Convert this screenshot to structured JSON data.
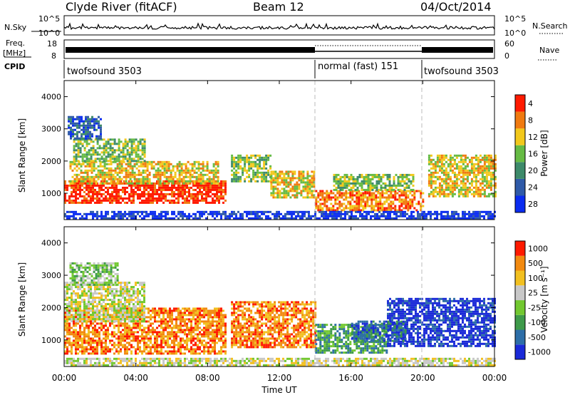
{
  "header": {
    "station": "Clyde River (fitACF)",
    "beam": "Beam 12",
    "date": "04/Oct/2014"
  },
  "strip_labels": {
    "nsky": "N.Sky",
    "nsearch": "N.Search",
    "freq_line1": "Freq.",
    "freq_line2": "[MHz]",
    "nave": "Nave",
    "cpid": "CPID",
    "nsky_tick_hi": "10^5",
    "nsky_tick_lo": "10^0",
    "freq_tick_hi": "18",
    "freq_tick_lo": "8",
    "nave_tick_hi": "60",
    "nave_tick_lo": "0"
  },
  "cpid_segments": [
    {
      "label": "twofsound 3503",
      "start_hour": 0,
      "end_hour": 14
    },
    {
      "label": "normal (fast) 151",
      "start_hour": 14,
      "end_hour": 20
    },
    {
      "label": "twofsound 3503",
      "start_hour": 20,
      "end_hour": 24
    }
  ],
  "axes": {
    "ylabel": "Slant Range [km]",
    "xlabel": "Time UT",
    "y_ticks": [
      "1000",
      "2000",
      "3000",
      "4000"
    ],
    "x_ticks": [
      "00:00",
      "04:00",
      "08:00",
      "12:00",
      "16:00",
      "20:00",
      "00:00"
    ]
  },
  "chart_data": [
    {
      "type": "heatmap",
      "variable": "Power",
      "unit": "dB",
      "colorbar_label": "Power [dB]",
      "colorbar_ticks": [
        "4",
        "8",
        "12",
        "16",
        "20",
        "24",
        "28"
      ],
      "colorbar_colors": [
        "#0a2cf0",
        "#2f5aa8",
        "#3d8a6a",
        "#66bb44",
        "#f2c81b",
        "#f07a10",
        "#ff1a00"
      ],
      "ylim": [
        180,
        4500
      ],
      "xlim_hours": [
        0,
        24
      ],
      "x_tick_hours": [
        0,
        4,
        8,
        12,
        16,
        20,
        24
      ],
      "y_tick_values": [
        1000,
        2000,
        3000,
        4000
      ],
      "regions": [
        {
          "t0": 0.0,
          "t1": 9.0,
          "r0": 700,
          "r1": 1400,
          "level": 6
        },
        {
          "t0": 0.3,
          "t1": 8.6,
          "r0": 1300,
          "r1": 2000,
          "level": 4
        },
        {
          "t0": 0.5,
          "t1": 4.5,
          "r0": 2000,
          "r1": 2700,
          "level": 3
        },
        {
          "t0": 0.2,
          "t1": 2.0,
          "r0": 2700,
          "r1": 3400,
          "level": 1
        },
        {
          "t0": 9.3,
          "t1": 11.5,
          "r0": 1400,
          "r1": 2200,
          "level": 3
        },
        {
          "t0": 11.5,
          "t1": 14.0,
          "r0": 900,
          "r1": 1700,
          "level": 4
        },
        {
          "t0": 14.0,
          "t1": 20.0,
          "r0": 500,
          "r1": 1100,
          "level": 5
        },
        {
          "t0": 15.0,
          "t1": 19.5,
          "r0": 1100,
          "r1": 1600,
          "level": 3
        },
        {
          "t0": 20.3,
          "t1": 24.0,
          "r0": 900,
          "r1": 2200,
          "level": 4
        },
        {
          "t0": 0.0,
          "t1": 24.0,
          "r0": 200,
          "r1": 450,
          "level": 0
        }
      ]
    },
    {
      "type": "heatmap",
      "variable": "Velocity",
      "unit": "m s^-1",
      "colorbar_label": "Velocity [m s⁻¹]",
      "colorbar_ticks": [
        "1000",
        "500",
        "100",
        "25",
        "-25",
        "-100",
        "-500",
        "-1000"
      ],
      "colorbar_colors": [
        "#1a2ad8",
        "#2d6ea8",
        "#3e9a4a",
        "#72c830",
        "#c8c8c8",
        "#f2c020",
        "#f28a10",
        "#ff1a00"
      ],
      "ylim": [
        180,
        4500
      ],
      "xlim_hours": [
        0,
        24
      ],
      "x_tick_hours": [
        0,
        4,
        8,
        12,
        16,
        20,
        24
      ],
      "y_tick_values": [
        1000,
        2000,
        3000,
        4000
      ],
      "regions": [
        {
          "t0": 0.0,
          "t1": 9.0,
          "r0": 600,
          "r1": 2000,
          "level": 6
        },
        {
          "t0": 0.0,
          "t1": 4.5,
          "r0": 1600,
          "r1": 2800,
          "level": 4
        },
        {
          "t0": 0.3,
          "t1": 3.0,
          "r0": 2700,
          "r1": 3400,
          "level": 3
        },
        {
          "t0": 9.3,
          "t1": 14.0,
          "r0": 800,
          "r1": 2200,
          "level": 6
        },
        {
          "t0": 14.0,
          "t1": 18.0,
          "r0": 600,
          "r1": 1500,
          "level": 2
        },
        {
          "t0": 18.0,
          "t1": 24.0,
          "r0": 800,
          "r1": 2300,
          "level": 0
        },
        {
          "t0": 16.0,
          "t1": 19.0,
          "r0": 1000,
          "r1": 1600,
          "level": 1
        },
        {
          "t0": 0.0,
          "t1": 24.0,
          "r0": 200,
          "r1": 450,
          "level": 4
        }
      ]
    }
  ]
}
